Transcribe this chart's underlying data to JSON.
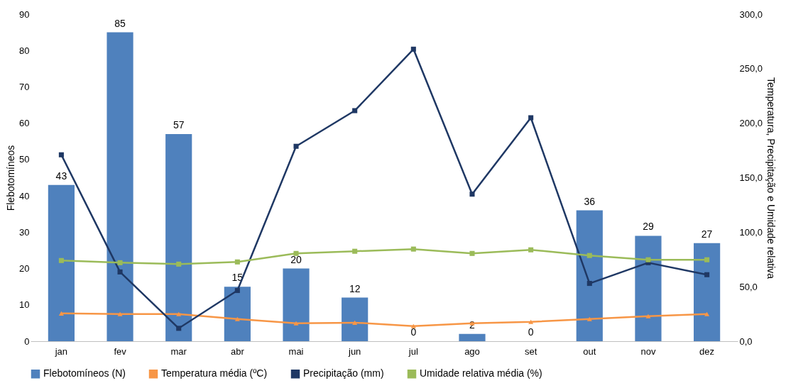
{
  "chart_data": {
    "type": "bar",
    "ylabel": "Flebotomíneos",
    "y2label": "Temperatura, Precipitação e Umidade relativa",
    "categories": [
      "jan",
      "fev",
      "mar",
      "abr",
      "mai",
      "jun",
      "jul",
      "ago",
      "set",
      "out",
      "nov",
      "dez"
    ],
    "series": [
      {
        "name": "Flebotomíneos (N)",
        "color": "#4f81bd",
        "values": [
          43,
          85,
          57,
          15,
          20,
          12,
          0,
          2,
          0,
          36,
          29,
          27
        ],
        "value_labels": [
          "43",
          "85",
          "57",
          "15",
          "20",
          "12",
          "0",
          "2",
          "0",
          "36",
          "29",
          "27"
        ]
      },
      {
        "name": "Temperatura média (ºC)",
        "type": "line",
        "axis": "y2",
        "marker": "triangle",
        "color": "#f79646",
        "values": [
          25.5,
          24.9,
          24.9,
          20.3,
          16.4,
          17,
          13.8,
          16.4,
          17.7,
          20.3,
          22.9,
          24.9
        ]
      },
      {
        "name": "Precipitação (mm)",
        "type": "line",
        "axis": "y2",
        "marker": "square",
        "color": "#1f3864",
        "values": [
          171,
          63.5,
          11.8,
          46.5,
          178.8,
          211.5,
          267.9,
          134.9,
          205,
          53,
          72,
          61
        ]
      },
      {
        "name": "Umidade relativa média (%)",
        "type": "line",
        "axis": "y2",
        "marker": "square",
        "color": "#9bbb59",
        "values": [
          74,
          72,
          70.7,
          72.7,
          80.5,
          82.5,
          84.5,
          80.5,
          83.8,
          78.6,
          74.7,
          74.7
        ]
      }
    ],
    "ylim": [
      0,
      90
    ],
    "yticks": [
      0,
      10,
      20,
      30,
      40,
      50,
      60,
      70,
      80,
      90
    ],
    "y2lim": [
      0,
      300
    ],
    "y2ticks": [
      {
        "value": 0,
        "label": "0,0"
      },
      {
        "value": 50,
        "label": "50,0"
      },
      {
        "value": 100,
        "label": "100,0"
      },
      {
        "value": 150,
        "label": "150,0"
      },
      {
        "value": 200,
        "label": "200,0"
      },
      {
        "value": 250,
        "label": "250,0"
      },
      {
        "value": 300,
        "label": "300,0"
      }
    ],
    "legend": "bottom",
    "grid": false
  }
}
